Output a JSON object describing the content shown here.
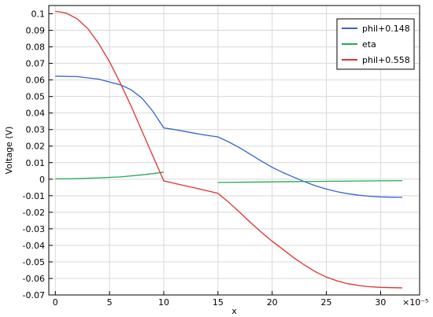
{
  "chart_data": {
    "type": "line",
    "title": "",
    "xlabel": "x",
    "ylabel": "Voltage (V)",
    "x_multiplier_label": "×10⁻⁵",
    "xlim": [
      -0.6,
      33.6
    ],
    "ylim": [
      -0.07,
      0.105
    ],
    "grid": true,
    "legend_position": "top-right",
    "x_ticks": [
      0,
      5,
      10,
      15,
      20,
      25,
      30
    ],
    "y_ticks": [
      -0.07,
      -0.06,
      -0.05,
      -0.04,
      -0.03,
      -0.02,
      -0.01,
      0,
      0.01,
      0.02,
      0.03,
      0.04,
      0.05,
      0.06,
      0.07,
      0.08,
      0.09,
      0.1
    ],
    "series": [
      {
        "name": "phil+0.148",
        "color": "#3366cc",
        "segments": [
          [
            [
              0,
              0.0623
            ],
            [
              2,
              0.062
            ],
            [
              4,
              0.0605
            ],
            [
              6,
              0.057
            ],
            [
              7,
              0.054
            ],
            [
              8,
              0.049
            ],
            [
              9,
              0.041
            ],
            [
              10,
              0.031
            ],
            [
              11,
              0.03
            ],
            [
              12,
              0.0288
            ],
            [
              13,
              0.0276
            ],
            [
              14,
              0.0265
            ],
            [
              15,
              0.0256
            ],
            [
              16,
              0.0225
            ],
            [
              17,
              0.019
            ],
            [
              18,
              0.015
            ],
            [
              19,
              0.011
            ],
            [
              20,
              0.0072
            ],
            [
              21,
              0.004
            ],
            [
              22,
              0.0012
            ],
            [
              23,
              -0.0015
            ],
            [
              24,
              -0.004
            ],
            [
              25,
              -0.006
            ],
            [
              26,
              -0.0076
            ],
            [
              27,
              -0.0088
            ],
            [
              28,
              -0.0097
            ],
            [
              29,
              -0.0103
            ],
            [
              30,
              -0.0107
            ],
            [
              31,
              -0.0109
            ],
            [
              32,
              -0.011
            ]
          ]
        ]
      },
      {
        "name": "eta",
        "color": "#22aa55",
        "segments": [
          [
            [
              0,
              0.0002
            ],
            [
              2,
              0.0004
            ],
            [
              4,
              0.0008
            ],
            [
              6,
              0.0014
            ],
            [
              8,
              0.0026
            ],
            [
              9,
              0.0034
            ],
            [
              10,
              0.0043
            ]
          ],
          [
            [
              15,
              -0.002
            ],
            [
              20,
              -0.0016
            ],
            [
              25,
              -0.0013
            ],
            [
              30,
              -0.001
            ],
            [
              32,
              -0.0009
            ]
          ]
        ]
      },
      {
        "name": "phil+0.558",
        "color": "#dd3333",
        "segments": [
          [
            [
              0,
              0.1015
            ],
            [
              1,
              0.1005
            ],
            [
              2,
              0.097
            ],
            [
              3,
              0.091
            ],
            [
              4,
              0.082
            ],
            [
              5,
              0.071
            ],
            [
              6,
              0.058
            ],
            [
              7,
              0.044
            ],
            [
              8,
              0.029
            ],
            [
              9,
              0.014
            ],
            [
              10,
              -0.001
            ],
            [
              11,
              -0.0025
            ],
            [
              12,
              -0.004
            ],
            [
              13,
              -0.0055
            ],
            [
              14,
              -0.007
            ],
            [
              15,
              -0.0085
            ],
            [
              16,
              -0.014
            ],
            [
              17,
              -0.02
            ],
            [
              18,
              -0.0262
            ],
            [
              19,
              -0.032
            ],
            [
              20,
              -0.0375
            ],
            [
              21,
              -0.0425
            ],
            [
              22,
              -0.0475
            ],
            [
              23,
              -0.052
            ],
            [
              24,
              -0.056
            ],
            [
              25,
              -0.0592
            ],
            [
              26,
              -0.0615
            ],
            [
              27,
              -0.0632
            ],
            [
              28,
              -0.0643
            ],
            [
              29,
              -0.065
            ],
            [
              30,
              -0.0654
            ],
            [
              31,
              -0.0656
            ],
            [
              32,
              -0.0657
            ]
          ]
        ]
      }
    ]
  }
}
